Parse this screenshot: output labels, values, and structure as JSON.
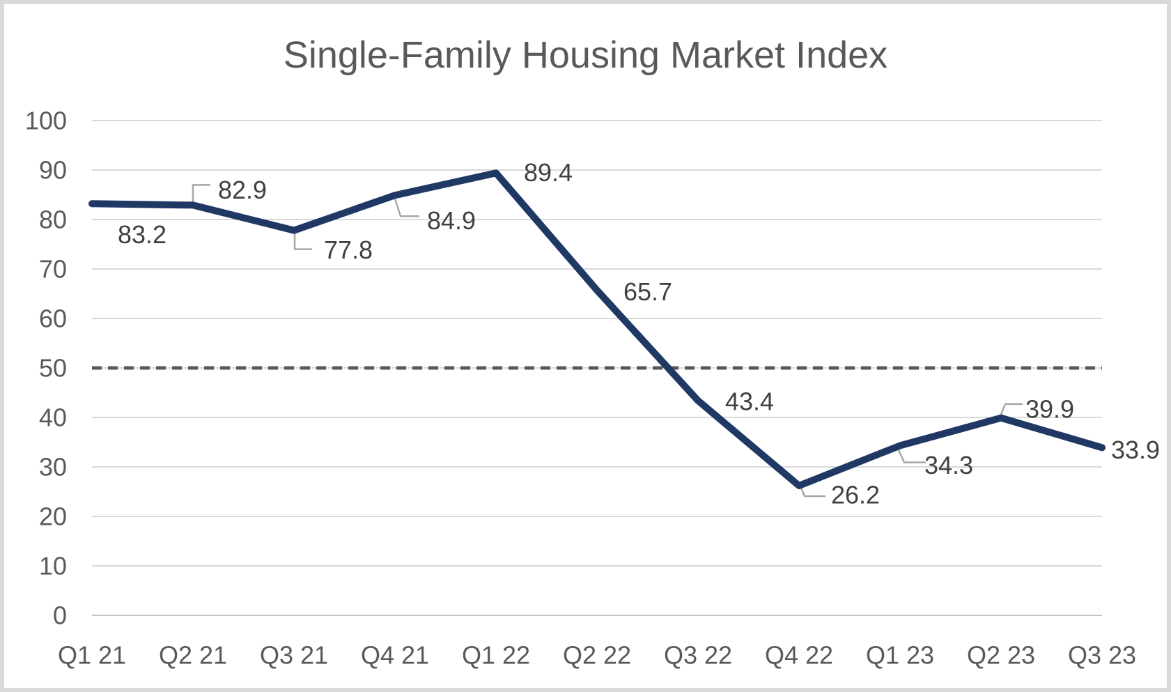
{
  "chart_data": {
    "type": "line",
    "title": "Single-Family Housing Market Index",
    "xlabel": "",
    "ylabel": "",
    "categories": [
      "Q1 21",
      "Q2 21",
      "Q3 21",
      "Q4 21",
      "Q1 22",
      "Q2 22",
      "Q3 22",
      "Q4 22",
      "Q1 23",
      "Q2 23",
      "Q3 23"
    ],
    "series": [
      {
        "name": "Single-Family Housing Market Index",
        "values": [
          83.2,
          82.9,
          77.8,
          84.9,
          89.4,
          65.7,
          43.4,
          26.2,
          34.3,
          39.9,
          33.9
        ]
      }
    ],
    "data_labels": [
      "83.2",
      "82.9",
      "77.8",
      "84.9",
      "89.4",
      "65.7",
      "43.4",
      "26.2",
      "34.3",
      "39.9",
      "33.9"
    ],
    "ylim": [
      0,
      100
    ],
    "yticks": [
      0,
      10,
      20,
      30,
      40,
      50,
      60,
      70,
      80,
      90,
      100
    ],
    "grid": true,
    "legend_position": "none",
    "reference_line": {
      "value": 50,
      "style": "dashed"
    },
    "colors": {
      "series_line": "#1f3864",
      "gridline": "#d9d9d9",
      "baseline": "#c6c6c6",
      "reference_line": "#595959",
      "axis_text": "#595959",
      "data_label_text": "#404040",
      "title_text": "#595959",
      "leader_line": "#a6a6a6",
      "frame_border": "#d9d9d9",
      "background": "#ffffff"
    }
  }
}
